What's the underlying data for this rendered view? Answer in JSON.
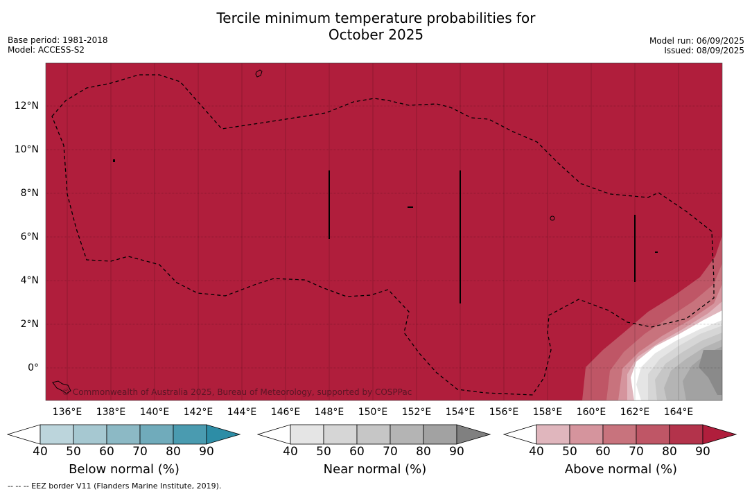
{
  "title_line1": "Tercile minimum temperature probabilities for",
  "title_line2": "October 2025",
  "base_period": "Base period: 1981-2018",
  "model": "Model: ACCESS-S2",
  "model_run": "Model run: 06/09/2025",
  "issued": "Issued: 08/09/2025",
  "copyright": "© Commonwealth of Australia 2025, Bureau of Meteorology, supported by COSPPac",
  "footnote": "--  --  -- EEZ border V11 (Flanders Marine Institute, 2019).",
  "map": {
    "lon_labels": [
      "136°E",
      "138°E",
      "140°E",
      "142°E",
      "144°E",
      "146°E",
      "148°E",
      "150°E",
      "152°E",
      "154°E",
      "156°E",
      "158°E",
      "160°E",
      "162°E",
      "164°E"
    ],
    "lat_labels": [
      "12°N",
      "10°N",
      "8°N",
      "6°N",
      "4°N",
      "2°N",
      "0°"
    ],
    "dominant_category": "Above normal",
    "dominant_color": "#b01e3c"
  },
  "colorbars": [
    {
      "title": "Below normal (%)",
      "ticks": [
        "40",
        "50",
        "60",
        "70",
        "80",
        "90"
      ],
      "colors": [
        "#ffffff",
        "#bcd5dc",
        "#a6c8d1",
        "#8cb9c5",
        "#70abbb",
        "#4a9bb0",
        "#2d8da6"
      ]
    },
    {
      "title": "Near normal (%)",
      "ticks": [
        "40",
        "50",
        "60",
        "70",
        "80",
        "90"
      ],
      "colors": [
        "#ffffff",
        "#e5e5e5",
        "#d6d6d6",
        "#c6c6c6",
        "#b4b4b4",
        "#a2a2a2",
        "#808080"
      ]
    },
    {
      "title": "Above normal (%)",
      "ticks": [
        "40",
        "50",
        "60",
        "70",
        "80",
        "90"
      ],
      "colors": [
        "#ffffff",
        "#e0b6bd",
        "#d5949d",
        "#c8737d",
        "#bf5666",
        "#b3334b",
        "#b01e3c"
      ]
    }
  ]
}
